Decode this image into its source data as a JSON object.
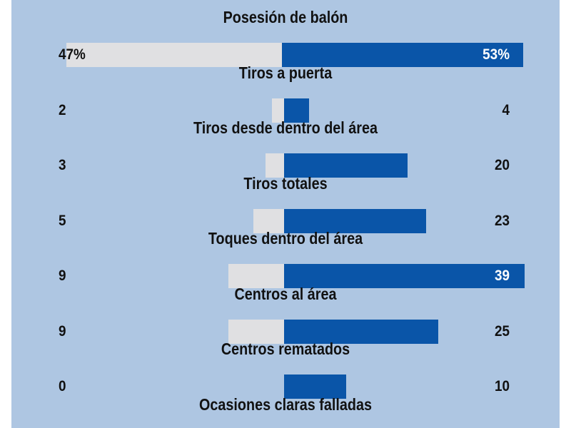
{
  "colors": {
    "background": "#aec6e2",
    "left_bar": "#e0e0e2",
    "right_bar": "#0a55a8",
    "text": "#111111",
    "text_in_bar": "#ffffff"
  },
  "chart_data": {
    "type": "bar",
    "categories": [
      "Posesión de balón",
      "Tiros a puerta",
      "Tiros desde dentro del área",
      "Tiros totales",
      "Toques dentro del área",
      "Centros al área",
      "Centros rematados",
      "Ocasiones claras falladas"
    ],
    "series": [
      {
        "values": [
          47,
          2,
          3,
          5,
          9,
          9,
          0,
          null
        ]
      },
      {
        "values": [
          53,
          4,
          20,
          23,
          39,
          25,
          10,
          null
        ]
      }
    ],
    "stats": [
      {
        "label": "Posesión de balón",
        "left": 47,
        "right": 53,
        "left_text": "47%",
        "right_text": "53%"
      },
      {
        "label": "Tiros a puerta",
        "left": 2,
        "right": 4,
        "left_text": "2",
        "right_text": "4"
      },
      {
        "label": "Tiros desde dentro del área",
        "left": 3,
        "right": 20,
        "left_text": "3",
        "right_text": "20"
      },
      {
        "label": "Tiros totales",
        "left": 5,
        "right": 23,
        "left_text": "5",
        "right_text": "23"
      },
      {
        "label": "Toques dentro del área",
        "left": 9,
        "right": 39,
        "left_text": "9",
        "right_text": "39"
      },
      {
        "label": "Centros al área",
        "left": 9,
        "right": 25,
        "left_text": "9",
        "right_text": "25"
      },
      {
        "label": "Centros rematados",
        "left": 0,
        "right": 10,
        "left_text": "0",
        "right_text": "10"
      },
      {
        "label": "Ocasiones claras falladas",
        "left": null,
        "right": null,
        "left_text": "",
        "right_text": ""
      }
    ]
  }
}
